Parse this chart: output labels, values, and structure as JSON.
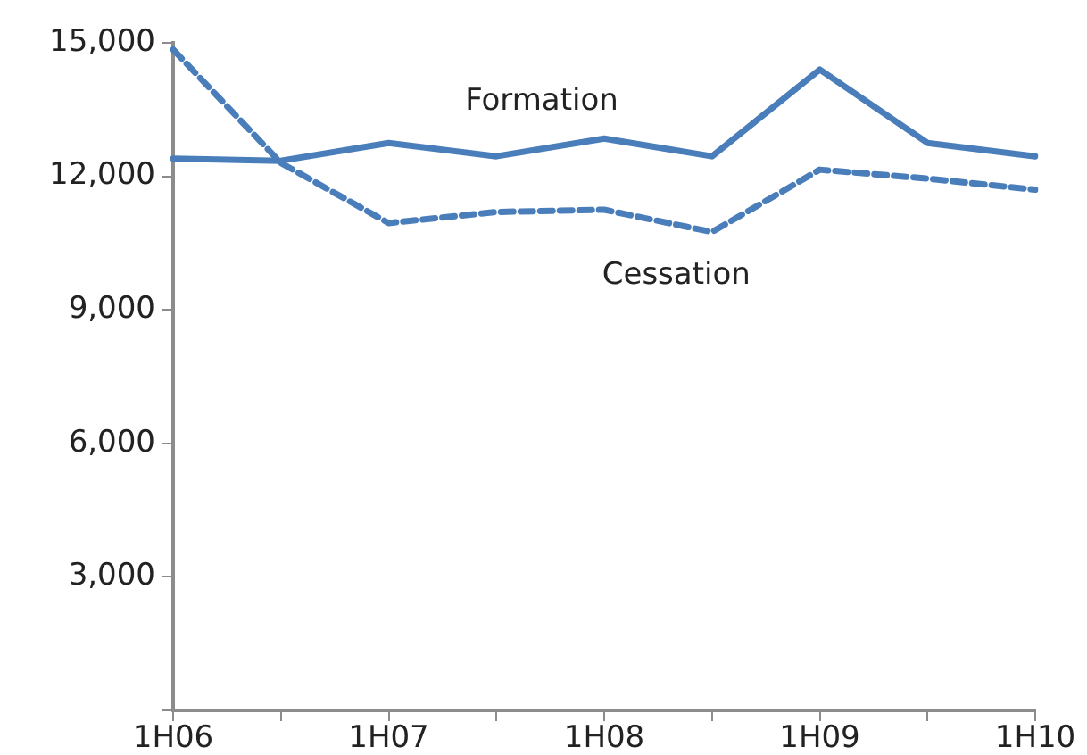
{
  "chart_data": {
    "type": "line",
    "categories": [
      "1H06",
      null,
      "1H07",
      null,
      "1H08",
      null,
      "1H09",
      null,
      "1H10"
    ],
    "series": [
      {
        "name": "Formation",
        "color": "#4a7ebb",
        "line_style": "solid",
        "values": [
          12400,
          12350,
          12750,
          12450,
          12850,
          12450,
          14400,
          12750,
          12450
        ]
      },
      {
        "name": "Cessation",
        "color": "#4a7ebb",
        "line_style": "dashed",
        "values": [
          14850,
          12300,
          10950,
          11200,
          11250,
          10750,
          12150,
          11950,
          11700
        ]
      }
    ],
    "ylim": [
      0,
      15000
    ],
    "yticks": [
      {
        "value": 0,
        "label": null
      },
      {
        "value": 3000,
        "label": "3,000"
      },
      {
        "value": 6000,
        "label": "6,000"
      },
      {
        "value": 9000,
        "label": "9,000"
      },
      {
        "value": 12000,
        "label": "12,000"
      },
      {
        "value": 15000,
        "label": "15,000"
      }
    ],
    "grid": false,
    "legend": false,
    "marker": "none"
  }
}
